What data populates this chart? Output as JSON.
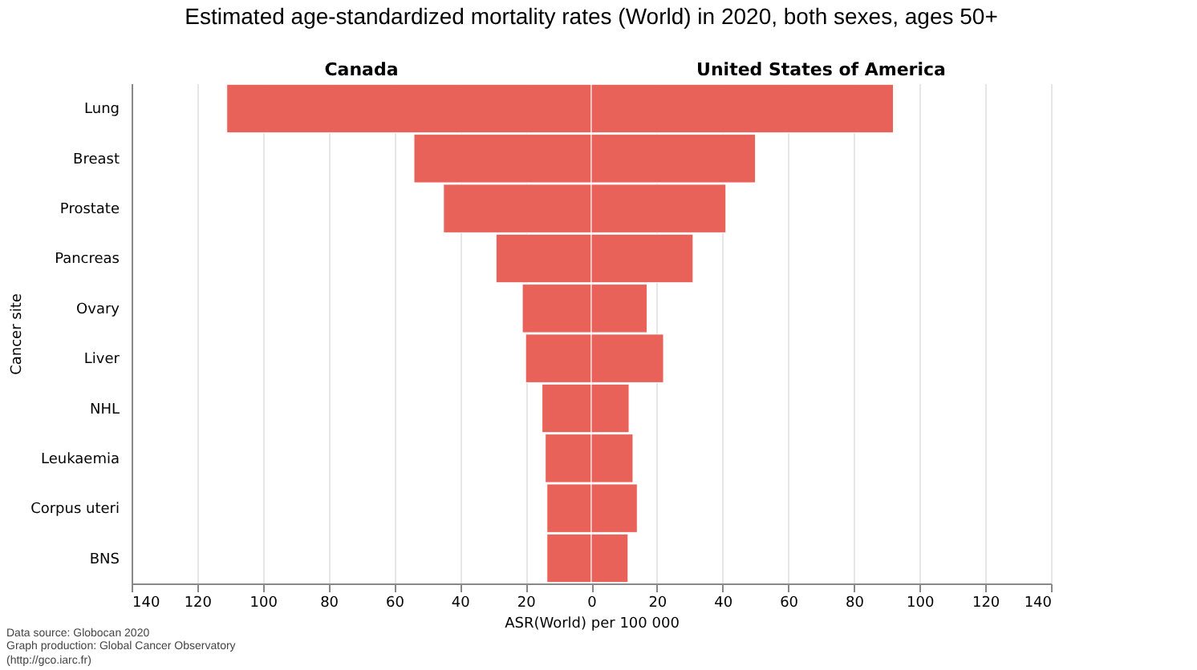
{
  "chart_data": {
    "type": "bar",
    "orientation": "horizontal",
    "title": "Estimated age-standardized mortality rates (World) in 2020, both sexes, ages 50+",
    "xlabel": "ASR(World) per 100 000",
    "ylabel": "Cancer site",
    "categories": [
      "Lung",
      "Breast",
      "Prostate",
      "Pancreas",
      "Ovary",
      "Liver",
      "NHL",
      "Leukaemia",
      "Corpus uteri",
      "BNS"
    ],
    "series": [
      {
        "name": "Canada",
        "color": "#e8625a",
        "values": [
          -111,
          -54,
          -45,
          -29,
          -21,
          -20,
          -15,
          -14,
          -13.5,
          -13.5
        ]
      },
      {
        "name": "United States of America",
        "color": "#e8625a",
        "values": [
          92,
          50,
          41,
          31,
          17,
          22,
          11.5,
          12.7,
          14,
          11.2
        ]
      }
    ],
    "xlim": [
      -140,
      140
    ],
    "xticks": [
      {
        "value": -140,
        "label": "140"
      },
      {
        "value": -120,
        "label": "120"
      },
      {
        "value": -100,
        "label": "100"
      },
      {
        "value": -80,
        "label": "80"
      },
      {
        "value": -60,
        "label": "60"
      },
      {
        "value": -40,
        "label": "40"
      },
      {
        "value": -20,
        "label": "20"
      },
      0,
      20,
      40,
      60,
      80,
      100,
      120,
      140
    ],
    "grid": "x",
    "stacked": true,
    "legend": false,
    "annotations": [
      "Data source: Globocan 2020",
      "Graph production: Global Cancer Observatory (http://gco.iarc.fr)"
    ]
  }
}
